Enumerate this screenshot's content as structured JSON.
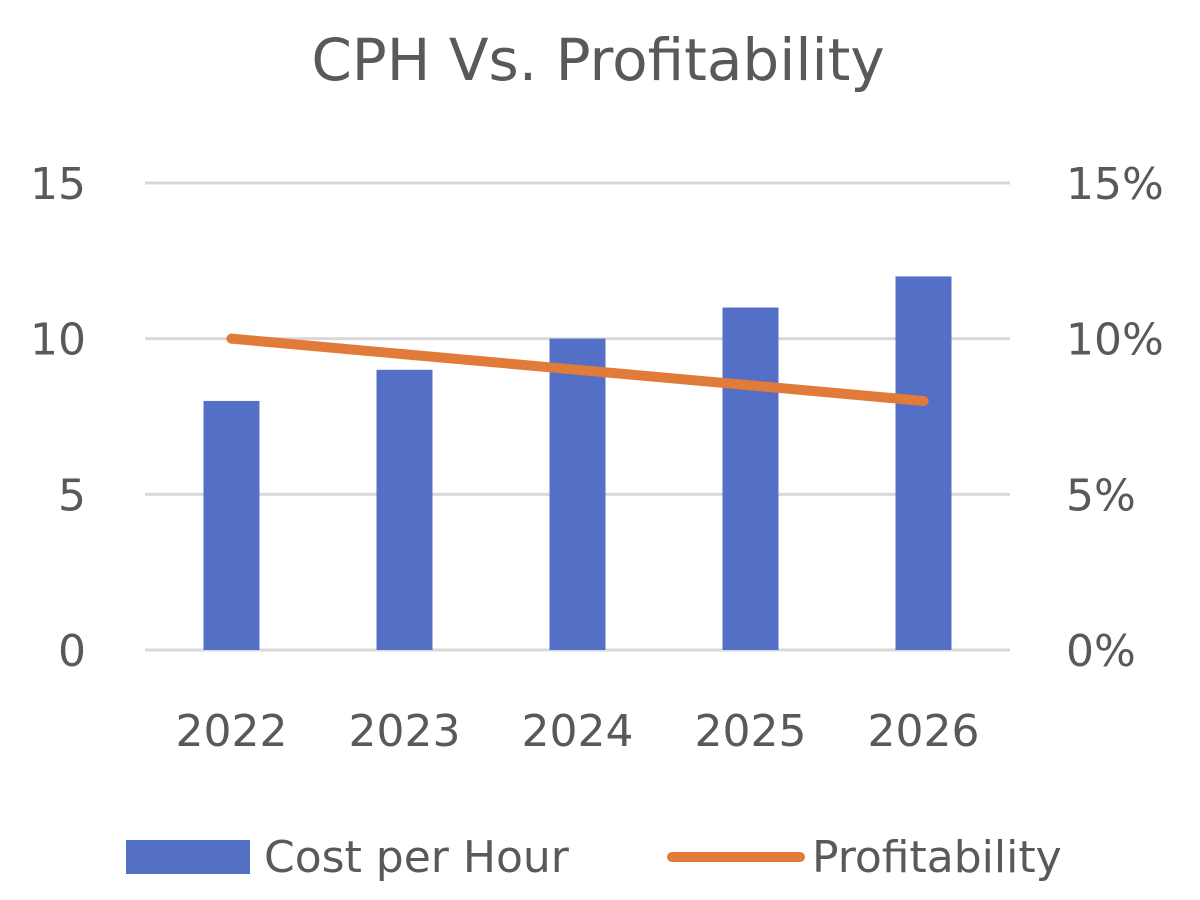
{
  "chart_data": {
    "type": "bar",
    "title": "CPH Vs. Profitability",
    "categories": [
      "2022",
      "2023",
      "2024",
      "2025",
      "2026"
    ],
    "series": [
      {
        "name": "Cost per Hour",
        "type": "bar",
        "axis": "left",
        "color": "#5470c6",
        "values": [
          8,
          9,
          10,
          11,
          12
        ]
      },
      {
        "name": "Profitability",
        "type": "line",
        "axis": "right",
        "color": "#e07b39",
        "values": [
          0.1,
          0.095,
          0.09,
          0.085,
          0.08
        ]
      }
    ],
    "y_left": {
      "ylim": [
        0,
        15
      ],
      "ticks": [
        "0",
        "5",
        "10",
        "15"
      ]
    },
    "y_right": {
      "ylim": [
        0,
        0.15
      ],
      "ticks": [
        "0%",
        "5%",
        "10%",
        "15%"
      ]
    },
    "grid": true,
    "legend_position": "bottom"
  }
}
